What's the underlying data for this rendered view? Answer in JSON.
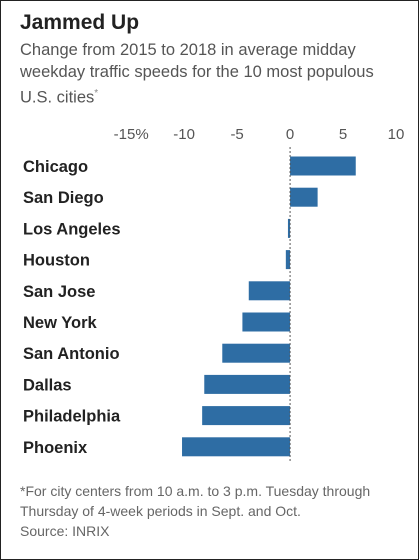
{
  "title": "Jammed Up",
  "subtitle": "Change from 2015 to 2018 in average midday weekday traffic speeds for the 10 most populous U.S. cities",
  "subtitle_mark": "*",
  "footnote": "*For city centers from 10 a.m. to 3 p.m. Tuesday through Thursday of 4-week periods in Sept. and Oct.",
  "source": "Source: INRIX",
  "colors": {
    "bar": "#2e6da4",
    "text": "#222222",
    "axis": "#555555"
  },
  "chart_data": {
    "type": "bar",
    "orientation": "horizontal",
    "categories": [
      "Chicago",
      "San Diego",
      "Los Angeles",
      "Houston",
      "San Jose",
      "New York",
      "San Antonio",
      "Dallas",
      "Philadelphia",
      "Phoenix"
    ],
    "values": [
      6.2,
      2.6,
      -0.2,
      -0.4,
      -3.9,
      -4.5,
      -6.4,
      -8.1,
      -8.3,
      -10.2
    ],
    "tick_values": [
      -15,
      -10,
      -5,
      0,
      5,
      10
    ],
    "tick_labels": [
      "-15%",
      "-10",
      "-5",
      "0",
      "5",
      "10"
    ],
    "xlim": [
      -17,
      10
    ],
    "grid": false
  }
}
